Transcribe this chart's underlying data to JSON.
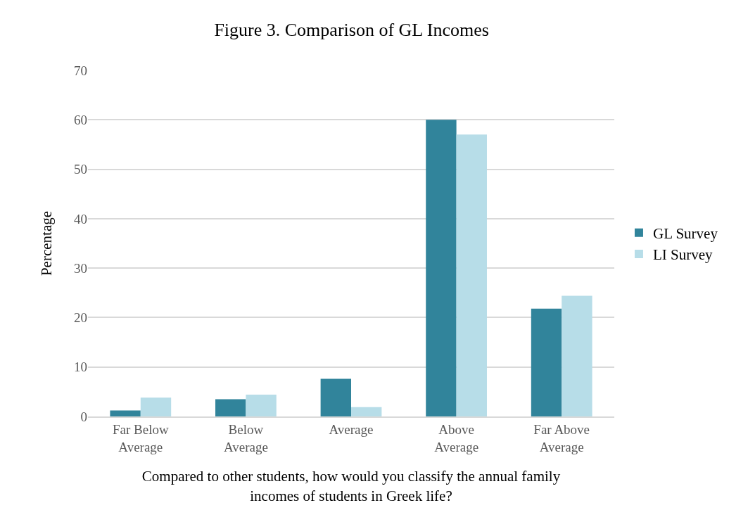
{
  "chart_data": {
    "type": "bar",
    "title": "Figure 3. Comparison of GL Incomes",
    "xlabel": "Compared to other students, how would you classify the annual family incomes of students in Greek life?",
    "ylabel": "Percentage",
    "categories": [
      "Far Below Average",
      "Below Average",
      "Average",
      "Above Average",
      "Far Above Average"
    ],
    "series": [
      {
        "name": "GL Survey",
        "color": "#31849b",
        "values": [
          1.2,
          3.5,
          7.6,
          60.0,
          21.8
        ]
      },
      {
        "name": "LI Survey",
        "color": "#b7dde8",
        "values": [
          3.8,
          4.4,
          1.9,
          57.0,
          24.4
        ]
      }
    ],
    "ylim": [
      0,
      70
    ],
    "yticks": [
      0,
      10,
      20,
      30,
      40,
      50,
      60,
      70
    ],
    "grid": "y",
    "legend": "right"
  }
}
